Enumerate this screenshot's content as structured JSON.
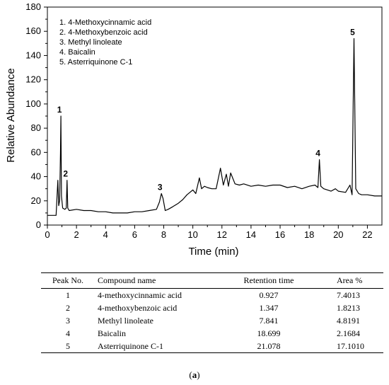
{
  "chart_data": {
    "type": "line",
    "xlabel": "Time (min)",
    "ylabel": "Relative Abundance",
    "xlim": [
      0,
      23
    ],
    "ylim": [
      0,
      180
    ],
    "xticks": [
      0,
      2,
      4,
      6,
      8,
      10,
      12,
      14,
      16,
      18,
      20,
      22
    ],
    "yticks": [
      0,
      20,
      40,
      60,
      80,
      100,
      120,
      140,
      160,
      180
    ],
    "line_color": "#000000",
    "legend": [
      "1. 4-Methoxycinnamic acid",
      "2. 4-Methoxybenzoic acid",
      "3. Methyl linoleate",
      "4. Baicalin",
      "5. Asterriquinone C-1"
    ],
    "legend_position": "top-left",
    "peak_labels": [
      {
        "label": "1",
        "x": 0.93,
        "y": 90
      },
      {
        "label": "2",
        "x": 1.35,
        "y": 37
      },
      {
        "label": "3",
        "x": 7.84,
        "y": 26
      },
      {
        "label": "4",
        "x": 18.7,
        "y": 54
      },
      {
        "label": "5",
        "x": 21.08,
        "y": 154
      }
    ],
    "series": [
      {
        "x": [
          0,
          0.6,
          0.72,
          0.78,
          0.84,
          0.9,
          0.93,
          0.97,
          1.05,
          1.2,
          1.3,
          1.35,
          1.4,
          1.5,
          2.0,
          2.5,
          3.0,
          3.5,
          4.0,
          4.5,
          5.0,
          5.5,
          6.0,
          6.5,
          7.0,
          7.5,
          7.7,
          7.84,
          7.95,
          8.1,
          8.3,
          8.6,
          9.0,
          9.3,
          9.6,
          9.8,
          10.0,
          10.2,
          10.45,
          10.6,
          10.8,
          11.0,
          11.3,
          11.6,
          11.9,
          12.1,
          12.3,
          12.45,
          12.6,
          12.9,
          13.2,
          13.5,
          14.0,
          14.5,
          15.0,
          15.5,
          16.0,
          16.5,
          17.0,
          17.5,
          18.0,
          18.4,
          18.6,
          18.7,
          18.8,
          19.0,
          19.5,
          19.8,
          20.0,
          20.5,
          20.8,
          20.95,
          21.08,
          21.2,
          21.4,
          21.6,
          22.0,
          22.5,
          23.0
        ],
        "y": [
          8,
          8,
          37,
          16,
          20,
          60,
          90,
          24,
          14,
          13,
          14,
          37,
          14,
          12,
          13,
          12,
          12,
          11,
          11,
          10,
          10,
          10,
          11,
          11,
          12,
          13,
          19,
          26,
          22,
          12,
          13,
          15,
          18,
          21,
          25,
          27,
          29,
          26,
          39,
          30,
          32,
          31,
          30,
          30,
          47,
          33,
          42,
          32,
          43,
          34,
          33,
          34,
          32,
          33,
          32,
          33,
          33,
          31,
          32,
          30,
          32,
          33,
          31,
          54,
          32,
          30,
          28,
          30,
          28,
          27,
          33,
          25,
          154,
          30,
          26,
          25,
          25,
          24,
          24
        ]
      }
    ]
  },
  "table": {
    "headers": [
      "Peak No.",
      "Compound name",
      "Retention time",
      "Area %"
    ],
    "rows": [
      [
        "1",
        "4-methoxycinnamic acid",
        "0.927",
        "7.4013"
      ],
      [
        "2",
        "4-methoxybenzoic acid",
        "1.347",
        "1.8213"
      ],
      [
        "3",
        "Methyl linoleate",
        "7.841",
        "4.8191"
      ],
      [
        "4",
        "Baicalin",
        "18.699",
        "2.1684"
      ],
      [
        "5",
        "Asterriquinone C-1",
        "21.078",
        "17.1010"
      ]
    ]
  },
  "caption": {
    "open": "(",
    "letter": "a",
    "close": ")"
  }
}
